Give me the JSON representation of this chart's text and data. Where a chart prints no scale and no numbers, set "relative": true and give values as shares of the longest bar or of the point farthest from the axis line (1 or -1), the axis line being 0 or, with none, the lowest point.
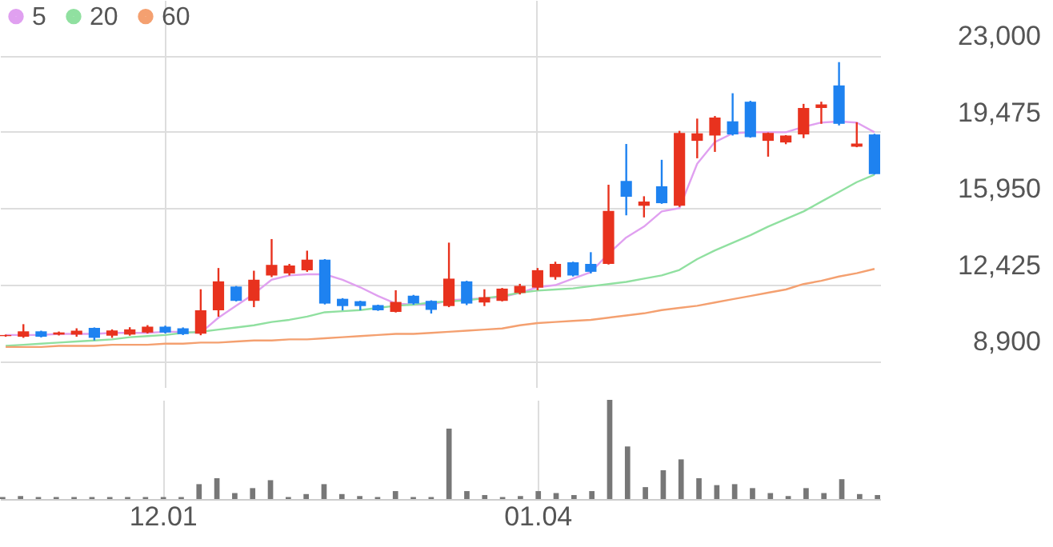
{
  "chart_data": [
    {
      "type": "candlestick",
      "categories": [
        null,
        null,
        null,
        null,
        null,
        null,
        null,
        null,
        null,
        "12.01",
        null,
        null,
        null,
        null,
        null,
        null,
        null,
        null,
        null,
        null,
        null,
        null,
        null,
        null,
        null,
        null,
        null,
        null,
        null,
        null,
        "01.04",
        null,
        null,
        null,
        null,
        null,
        null,
        null,
        null,
        null,
        null,
        null,
        null,
        null,
        null,
        null,
        null,
        null,
        null,
        null
      ],
      "ohlc": [
        [
          10050,
          10120,
          10020,
          10100
        ],
        [
          10020,
          10600,
          9970,
          10270
        ],
        [
          10270,
          10300,
          9990,
          10020
        ],
        [
          10120,
          10260,
          10080,
          10220
        ],
        [
          10120,
          10410,
          10020,
          10300
        ],
        [
          10430,
          10450,
          9850,
          9970
        ],
        [
          10070,
          10360,
          9970,
          10310
        ],
        [
          10120,
          10460,
          10070,
          10360
        ],
        [
          10215,
          10555,
          10170,
          10485
        ],
        [
          10485,
          10530,
          10170,
          10215
        ],
        [
          10410,
          10450,
          10100,
          10140
        ],
        [
          10165,
          12210,
          10090,
          11240
        ],
        [
          11240,
          13190,
          10945,
          12575
        ],
        [
          12335,
          12360,
          11650,
          11675
        ],
        [
          11675,
          13065,
          11385,
          12650
        ],
        [
          12845,
          14525,
          12770,
          13335
        ],
        [
          12940,
          13380,
          12845,
          13305
        ],
        [
          13085,
          13990,
          13015,
          13575
        ],
        [
          13575,
          13600,
          11510,
          11550
        ],
        [
          11770,
          11800,
          11240,
          11435
        ],
        [
          11660,
          11680,
          11240,
          11435
        ],
        [
          11480,
          11500,
          11215,
          11240
        ],
        [
          11165,
          12165,
          11140,
          11625
        ],
        [
          11915,
          11950,
          11500,
          11550
        ],
        [
          11675,
          11700,
          11090,
          11260
        ],
        [
          11435,
          14360,
          11385,
          12700
        ],
        [
          12575,
          12600,
          11480,
          11550
        ],
        [
          11600,
          12210,
          11435,
          11845
        ],
        [
          11675,
          12270,
          11650,
          12240
        ],
        [
          12040,
          12460,
          11970,
          12365
        ],
        [
          12285,
          13190,
          12165,
          13090
        ],
        [
          12770,
          13480,
          12650,
          13380
        ],
        [
          13455,
          13480,
          12800,
          12845
        ],
        [
          13380,
          13920,
          12940,
          13015
        ],
        [
          13380,
          17030,
          13350,
          15820
        ],
        [
          17205,
          18910,
          15620,
          16475
        ],
        [
          16060,
          16500,
          15525,
          16255
        ],
        [
          16960,
          18180,
          16150,
          16180
        ],
        [
          16060,
          19515,
          16010,
          19420
        ],
        [
          19055,
          20080,
          18250,
          19400
        ],
        [
          19300,
          20200,
          18545,
          20130
        ],
        [
          19955,
          21250,
          19300,
          19350
        ],
        [
          20860,
          20900,
          19200,
          19225
        ],
        [
          19055,
          19440,
          18325,
          19420
        ],
        [
          18980,
          19320,
          18900,
          19300
        ],
        [
          19350,
          20760,
          19180,
          20570
        ],
        [
          20570,
          20860,
          19840,
          20735
        ],
        [
          21610,
          22685,
          19765,
          19840
        ],
        [
          18785,
          19910,
          18760,
          18930
        ],
        [
          19350,
          19380,
          17500,
          17520
        ]
      ],
      "series": [
        {
          "name": "5",
          "type": "line",
          "color": "#e0a0f0",
          "values": [
            10100,
            10100,
            10100,
            10150,
            10150,
            10150,
            10200,
            10200,
            10200,
            10250,
            10250,
            10200,
            10900,
            11450,
            12000,
            12650,
            12850,
            12900,
            12900,
            12650,
            12300,
            11900,
            11550,
            11500,
            11500,
            11700,
            11750,
            11800,
            11850,
            12050,
            12300,
            12400,
            12700,
            13000,
            13850,
            14600,
            15100,
            15800,
            15950,
            18000,
            19000,
            19400,
            19450,
            19450,
            19450,
            19700,
            19900,
            19950,
            19900,
            19450
          ]
        },
        {
          "name": "20",
          "type": "line",
          "color": "#90e0a0",
          "values": [
            9600,
            9650,
            9700,
            9750,
            9800,
            9850,
            9900,
            10000,
            10050,
            10100,
            10200,
            10250,
            10350,
            10450,
            10550,
            10700,
            10800,
            10950,
            11150,
            11200,
            11250,
            11350,
            11450,
            11500,
            11600,
            11650,
            11700,
            11800,
            11900,
            12050,
            12150,
            12200,
            12250,
            12350,
            12450,
            12550,
            12700,
            12850,
            13100,
            13600,
            14000,
            14350,
            14700,
            15100,
            15450,
            15800,
            16250,
            16700,
            17150,
            17500
          ]
        },
        {
          "name": "60",
          "type": "line",
          "color": "#f4a070",
          "values": [
            9550,
            9550,
            9550,
            9600,
            9600,
            9600,
            9650,
            9650,
            9650,
            9700,
            9700,
            9750,
            9750,
            9800,
            9850,
            9850,
            9900,
            9900,
            9950,
            10000,
            10050,
            10100,
            10150,
            10150,
            10200,
            10250,
            10300,
            10350,
            10400,
            10550,
            10650,
            10700,
            10750,
            10800,
            10900,
            11000,
            11100,
            11250,
            11350,
            11450,
            11600,
            11750,
            11900,
            12050,
            12200,
            12450,
            12600,
            12800,
            12950,
            13150
          ]
        }
      ],
      "ylim": [
        7700,
        25550
      ],
      "yticks": [
        {
          "value": 8900,
          "label": "8,900"
        },
        {
          "value": 12425,
          "label": "12,425"
        },
        {
          "value": 15950,
          "label": "15,950"
        },
        {
          "value": 19475,
          "label": "19,475"
        },
        {
          "value": 23000,
          "label": "23,000"
        }
      ],
      "grid": true,
      "legend": "top left",
      "tick_labels": "y"
    },
    {
      "type": "bar",
      "relative": true,
      "color": "#777777",
      "grid": "x",
      "tick_labels": "x",
      "categories": [
        null,
        null,
        null,
        null,
        null,
        null,
        null,
        null,
        null,
        "12.01",
        null,
        null,
        null,
        null,
        null,
        null,
        null,
        null,
        null,
        null,
        null,
        null,
        null,
        null,
        null,
        null,
        null,
        null,
        null,
        null,
        "01.04",
        null,
        null,
        null,
        null,
        null,
        null,
        null,
        null,
        null,
        null,
        null,
        null,
        null,
        null,
        null,
        null,
        null,
        null,
        null
      ],
      "values": [
        0.02,
        0.03,
        0.02,
        0.02,
        0.02,
        0.02,
        0.02,
        0.02,
        0.02,
        0.02,
        0.02,
        0.15,
        0.21,
        0.06,
        0.11,
        0.19,
        0.02,
        0.05,
        0.15,
        0.05,
        0.03,
        0.02,
        0.08,
        0.02,
        0.02,
        0.71,
        0.08,
        0.04,
        0.02,
        0.03,
        0.08,
        0.06,
        0.04,
        0.08,
        1,
        0.53,
        0.12,
        0.29,
        0.4,
        0.21,
        0.14,
        0.15,
        0.11,
        0.06,
        0.03,
        0.11,
        0.06,
        0.2,
        0.05,
        0.04
      ]
    }
  ]
}
